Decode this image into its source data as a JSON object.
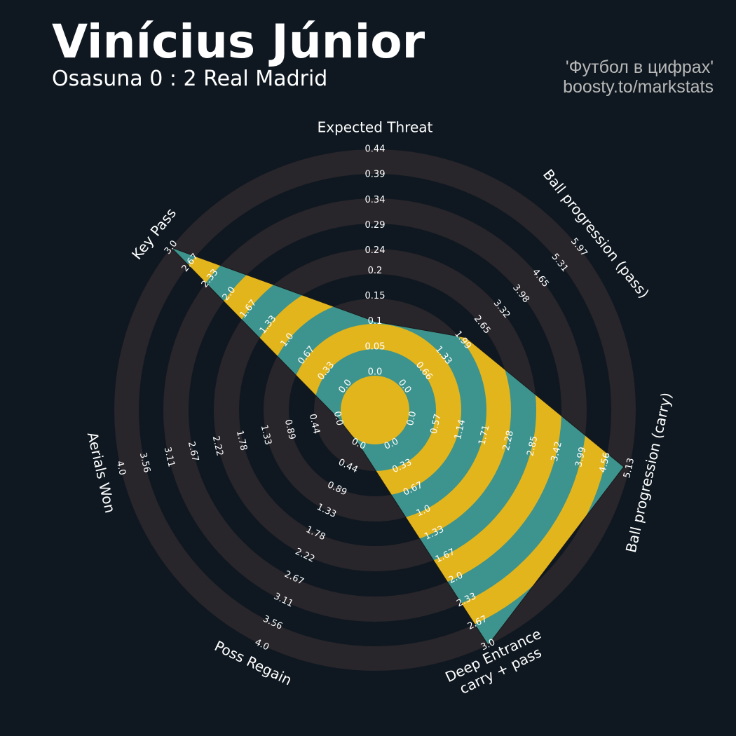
{
  "chart_data": {
    "type": "radar",
    "title": "Vinícius Júnior",
    "subtitle": "Osasuna 0 : 2 Real Madrid",
    "credits": [
      "'Футбол в цифрах'",
      "boosty.to/markstats"
    ],
    "categories": [
      [
        "Expected Threat"
      ],
      [
        "Ball progression (pass)"
      ],
      [
        "Ball progression (carry)"
      ],
      [
        "Deep Entrance",
        "carry + pass"
      ],
      [
        "Poss Regain"
      ],
      [
        "Aerials Won"
      ],
      [
        "Key Pass"
      ]
    ],
    "values": [
      0.1,
      2.1,
      5.0,
      3.0,
      0,
      0,
      3.0
    ],
    "axis_ranges": [
      [
        0,
        0.44
      ],
      [
        0,
        5.97
      ],
      [
        0,
        5.13
      ],
      [
        0,
        3
      ],
      [
        0,
        4
      ],
      [
        0,
        4
      ],
      [
        0,
        3
      ]
    ],
    "axis_ticks": [
      [
        {
          "value": 0,
          "label": "0.0"
        },
        0.05,
        0.1,
        0.15,
        0.2,
        0.24,
        0.29,
        0.34,
        0.39,
        0.44
      ],
      [
        {
          "value": 0,
          "label": "0.0"
        },
        0.66,
        1.33,
        1.99,
        2.65,
        3.32,
        3.98,
        4.65,
        5.31,
        5.97
      ],
      [
        {
          "value": 0,
          "label": "0.0"
        },
        0.57,
        1.14,
        1.71,
        2.28,
        2.85,
        3.42,
        3.99,
        4.56,
        5.13
      ],
      [
        {
          "value": 0,
          "label": "0.0"
        },
        0.33,
        0.67,
        {
          "value": 1,
          "label": "1.0"
        },
        1.33,
        1.67,
        {
          "value": 2,
          "label": "2.0"
        },
        2.33,
        2.67,
        {
          "value": 3,
          "label": "3.0"
        }
      ],
      [
        {
          "value": 0,
          "label": "0.0"
        },
        0.44,
        0.89,
        1.33,
        1.78,
        2.22,
        2.67,
        3.11,
        3.56,
        {
          "value": 4,
          "label": "4.0"
        }
      ],
      [
        {
          "value": 0,
          "label": "0.0"
        },
        0.44,
        0.89,
        1.33,
        1.78,
        2.22,
        2.67,
        3.11,
        3.56,
        {
          "value": 4,
          "label": "4.0"
        }
      ],
      [
        {
          "value": 0,
          "label": "0.0"
        },
        0.33,
        0.67,
        {
          "value": 1,
          "label": "1.0"
        },
        1.33,
        1.67,
        {
          "value": 2,
          "label": "2.0"
        },
        2.33,
        2.67,
        {
          "value": 3,
          "label": "3.0"
        }
      ]
    ],
    "colors": {
      "background": "#0f1820",
      "rings": "#28252b",
      "fill": "#3d938d",
      "fill_alt": "#e3b51d"
    }
  }
}
